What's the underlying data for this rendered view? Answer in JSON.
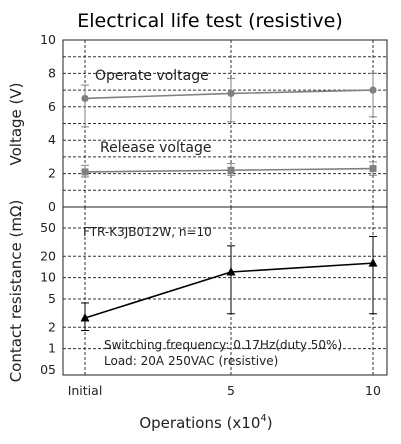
{
  "chart_data": [
    {
      "type": "line",
      "panel": "upper",
      "title": "Electrical life test (resistive)",
      "ylabel": "Voltage (V)",
      "ylim": [
        0,
        10
      ],
      "yticks": [
        "0",
        "2",
        "4",
        "6",
        "8",
        "10"
      ],
      "x": [
        "Initial",
        "5",
        "10"
      ],
      "grid": true,
      "series": [
        {
          "name": "Operate voltage",
          "color": "#808080",
          "marker": "circle",
          "values": [
            6.5,
            6.8,
            7.0
          ],
          "err_low": [
            4.8,
            5.1,
            5.4
          ],
          "err_high": [
            7.3,
            7.7,
            8.0
          ]
        },
        {
          "name": "Release voltage",
          "color": "#808080",
          "marker": "square",
          "values": [
            2.1,
            2.2,
            2.3
          ],
          "err_low": [
            1.8,
            1.9,
            1.9
          ],
          "err_high": [
            2.5,
            2.6,
            2.7
          ]
        }
      ]
    },
    {
      "type": "line",
      "panel": "lower",
      "ylabel": "Contact resistance (mΩ)",
      "yscale": "log",
      "ylim": [
        0.5,
        50
      ],
      "yticks": [
        "0.5",
        "1",
        "2",
        "5",
        "10",
        "20",
        "50"
      ],
      "x": [
        "Initial",
        "5",
        "10"
      ],
      "xlabel_main": "Operations (x10",
      "xlabel_exp": "4",
      "xlabel_close": ")",
      "grid": true,
      "annotation": "FTR-K3JB012W, n=10",
      "notes": [
        "Switching frequency: 0.17Hz(duty 50%)",
        "Load: 20A 250VAC (resistive)"
      ],
      "series": [
        {
          "color": "#000000",
          "marker": "triangle",
          "values": [
            2.7,
            12,
            16
          ],
          "err_low": [
            1.8,
            3.1,
            3.1
          ],
          "err_high": [
            4.4,
            28,
            38
          ]
        }
      ]
    }
  ]
}
